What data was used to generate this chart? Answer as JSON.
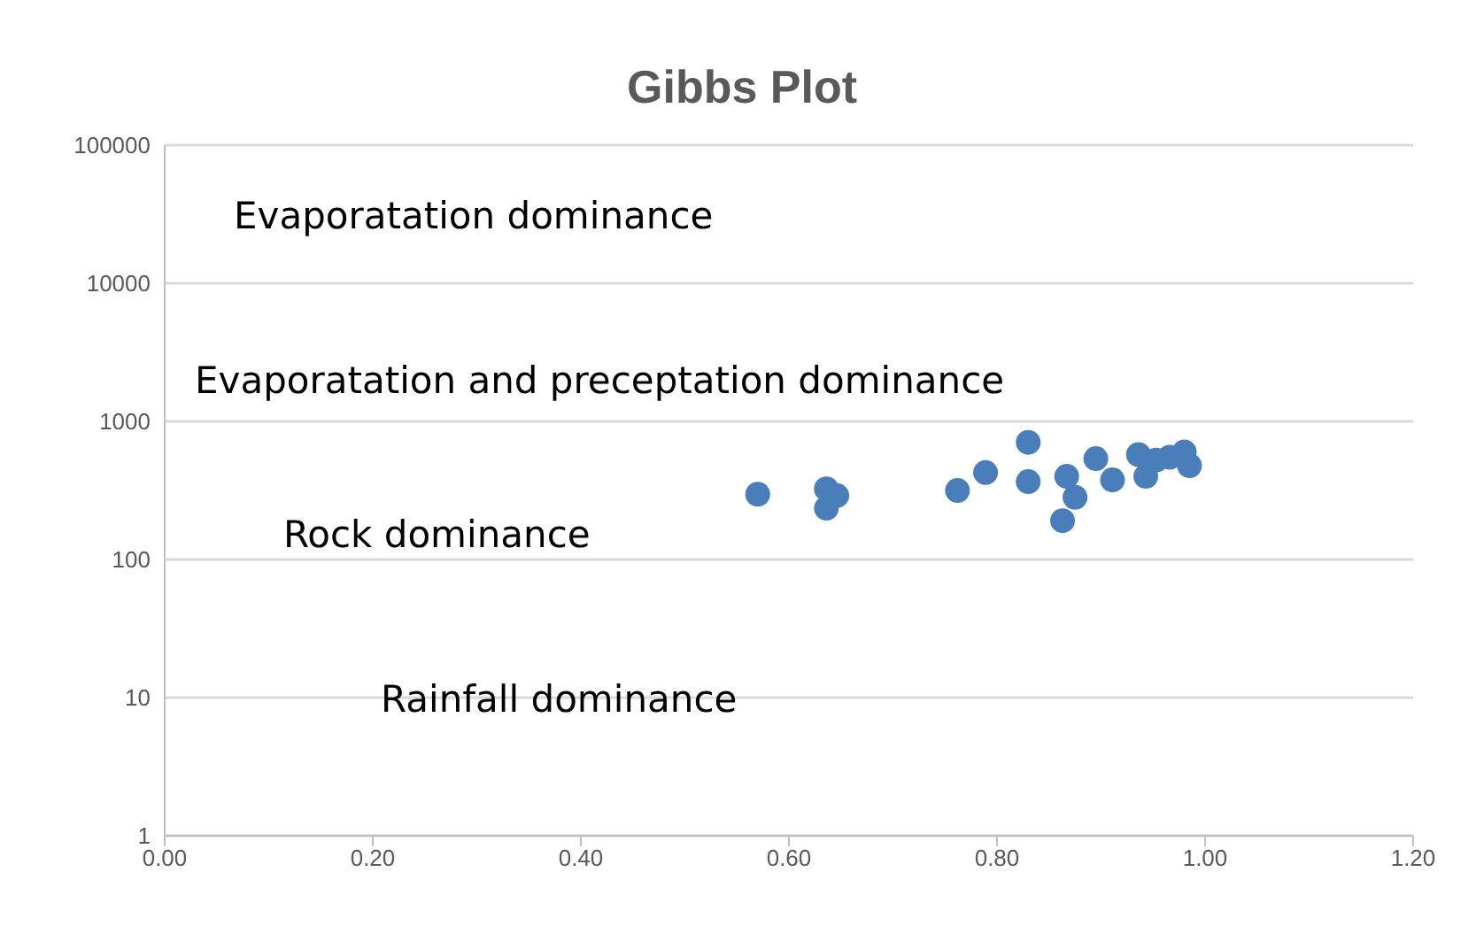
{
  "chart_data": {
    "type": "scatter",
    "title": "Gibbs Plot",
    "annotations": [
      "Evaporatation dominance",
      "Evaporatation and preceptation dominance",
      "Rock dominance",
      "Rainfall dominance"
    ],
    "x": [
      0.57,
      0.636,
      0.646,
      0.636,
      0.762,
      0.789,
      0.83,
      0.83,
      0.867,
      0.875,
      0.863,
      0.895,
      0.911,
      0.936,
      0.943,
      0.953,
      0.966,
      0.98,
      0.985
    ],
    "values": [
      297,
      325,
      290,
      235,
      316,
      426,
      705,
      366,
      400,
      282,
      191,
      537,
      377,
      575,
      400,
      525,
      550,
      600,
      478
    ],
    "color": "#4a7ebb",
    "marker": "circle",
    "log": "y",
    "grid": "y",
    "xlim": [
      0,
      1.2
    ],
    "xticks": [
      {
        "value": 0,
        "label": "0.00"
      },
      {
        "value": 0.2,
        "label": "0.20"
      },
      {
        "value": 0.4,
        "label": "0.40"
      },
      {
        "value": 0.6,
        "label": "0.60"
      },
      {
        "value": 0.8,
        "label": "0.80"
      },
      {
        "value": 1,
        "label": "1.00"
      },
      {
        "value": 1.2,
        "label": "1.20"
      }
    ],
    "ylim": [
      1,
      100000
    ],
    "yticks": [
      1,
      10,
      100,
      1000,
      10000,
      100000
    ]
  }
}
